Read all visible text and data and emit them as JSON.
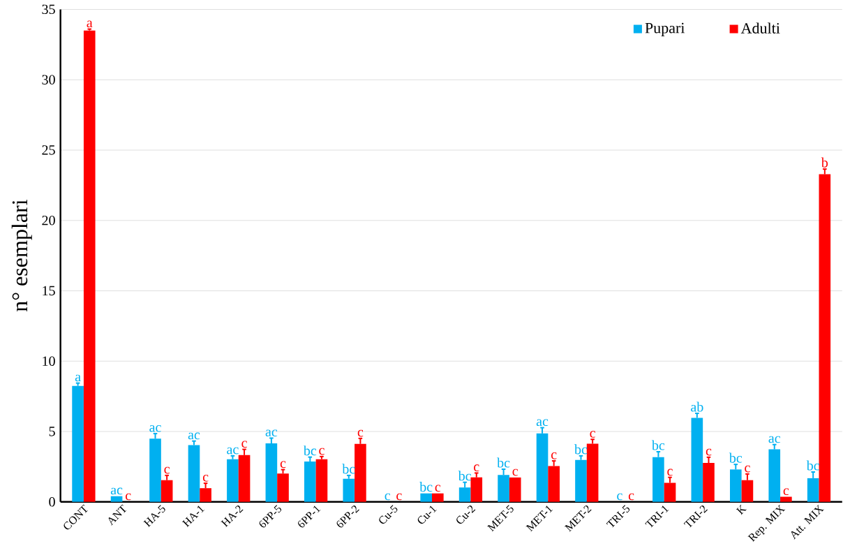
{
  "chart_data": {
    "type": "bar",
    "ylabel": "n° esemplari",
    "categories": [
      "CONT",
      "ANT",
      "HA-5",
      "HA-1",
      "HA-2",
      "6PP-5",
      "6PP-1",
      "6PP-2",
      "Cu-5",
      "Cu-1",
      "Cu-2",
      "MET-5",
      "MET-1",
      "MET-2",
      "TRI-5",
      "TRI-1",
      "TRI-2",
      "K",
      "Rep. MIX",
      "Att. MIX"
    ],
    "series": [
      {
        "name": "Pupari",
        "color": "#00b0f0",
        "values": [
          8.24,
          0.4,
          4.49,
          4.03,
          3.03,
          4.15,
          2.86,
          1.64,
          0,
          0.6,
          1.02,
          1.91,
          4.86,
          2.98,
          0,
          3.18,
          5.97,
          2.3,
          3.73,
          1.68
        ],
        "errors": [
          [
            8.24,
            8.44
          ],
          null,
          [
            4.49,
            4.85
          ],
          [
            4.03,
            4.32
          ],
          [
            3.03,
            3.27
          ],
          [
            4.15,
            4.53
          ],
          [
            2.86,
            3.18
          ],
          [
            1.64,
            1.88
          ],
          null,
          null,
          [
            1.02,
            1.39
          ],
          [
            1.91,
            2.32
          ],
          [
            4.86,
            5.27
          ],
          [
            2.98,
            3.27
          ],
          null,
          [
            3.18,
            3.56
          ],
          [
            5.97,
            6.29
          ],
          [
            2.3,
            2.66
          ],
          [
            3.73,
            4.07
          ],
          [
            1.68,
            2.12
          ]
        ],
        "value_labels": [
          "a",
          "ac",
          "ac",
          "ac",
          "ac",
          "ac",
          "bc",
          "bc",
          "c",
          "bc",
          "bc",
          "bc",
          "ac",
          "bc",
          "c",
          "bc",
          "ab",
          "bc",
          "ac",
          "bc"
        ]
      },
      {
        "name": "Adulti",
        "color": "#ff0000",
        "values": [
          33.5,
          0,
          1.54,
          0.97,
          3.32,
          2.01,
          3.03,
          4.12,
          0,
          0.6,
          1.74,
          1.73,
          2.54,
          4.13,
          0,
          1.35,
          2.76,
          1.54,
          0.36,
          23.28
        ],
        "errors": [
          [
            33.5,
            33.6
          ],
          null,
          [
            1.54,
            1.88
          ],
          [
            0.97,
            1.32
          ],
          [
            3.32,
            3.73
          ],
          [
            2.01,
            2.29
          ],
          [
            3.03,
            3.22
          ],
          [
            4.12,
            4.51
          ],
          null,
          null,
          [
            1.74,
            2.05
          ],
          null,
          [
            2.54,
            2.91
          ],
          [
            4.13,
            4.44
          ],
          null,
          [
            1.35,
            1.74
          ],
          [
            2.76,
            3.17
          ],
          [
            1.54,
            1.98
          ],
          null,
          [
            23.28,
            23.65
          ]
        ],
        "value_labels": [
          "a",
          "c",
          "c",
          "c",
          "c",
          "c",
          "c",
          "c",
          "c",
          "c",
          "c",
          "c",
          "c",
          "c",
          "c",
          "c",
          "c",
          "c",
          "c",
          "b"
        ]
      }
    ],
    "ylim": [
      0,
      35
    ],
    "yticks": [
      0,
      5,
      10,
      15,
      20,
      25,
      30,
      35
    ],
    "grid": "y",
    "legend": "top right"
  }
}
